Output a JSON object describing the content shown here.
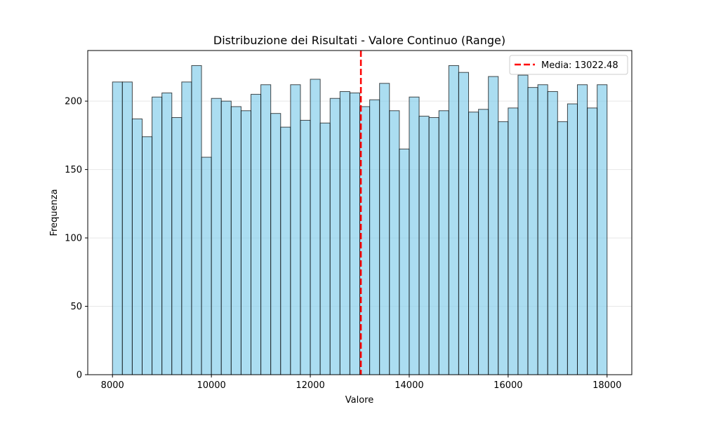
{
  "chart_data": {
    "type": "bar",
    "title": "Distribuzione dei Risultati - Valore Continuo (Range)",
    "xlabel": "Valore",
    "ylabel": "Frequenza",
    "xlim": [
      7500,
      18500
    ],
    "ylim": [
      0,
      237
    ],
    "x_ticks": [
      8000,
      10000,
      12000,
      14000,
      16000,
      18000
    ],
    "y_ticks": [
      0,
      50,
      100,
      150,
      200
    ],
    "bin_start": 8000,
    "bin_width": 200,
    "values": [
      214,
      214,
      187,
      174,
      203,
      206,
      188,
      214,
      226,
      159,
      202,
      200,
      196,
      193,
      205,
      212,
      191,
      181,
      212,
      186,
      216,
      184,
      202,
      207,
      206,
      196,
      201,
      213,
      193,
      165,
      203,
      189,
      188,
      193,
      226,
      221,
      192,
      194,
      218,
      185,
      195,
      219,
      210,
      212,
      207,
      185,
      198,
      212,
      195,
      212
    ],
    "bar_color": "#87ceeb",
    "bar_edge_color": "#000000",
    "grid": "y",
    "mean_line": {
      "value": 13022.48,
      "label": "Media: 13022.48",
      "color": "#ff0000",
      "style": "dashed"
    },
    "legend": {
      "placement": "top-right"
    }
  }
}
